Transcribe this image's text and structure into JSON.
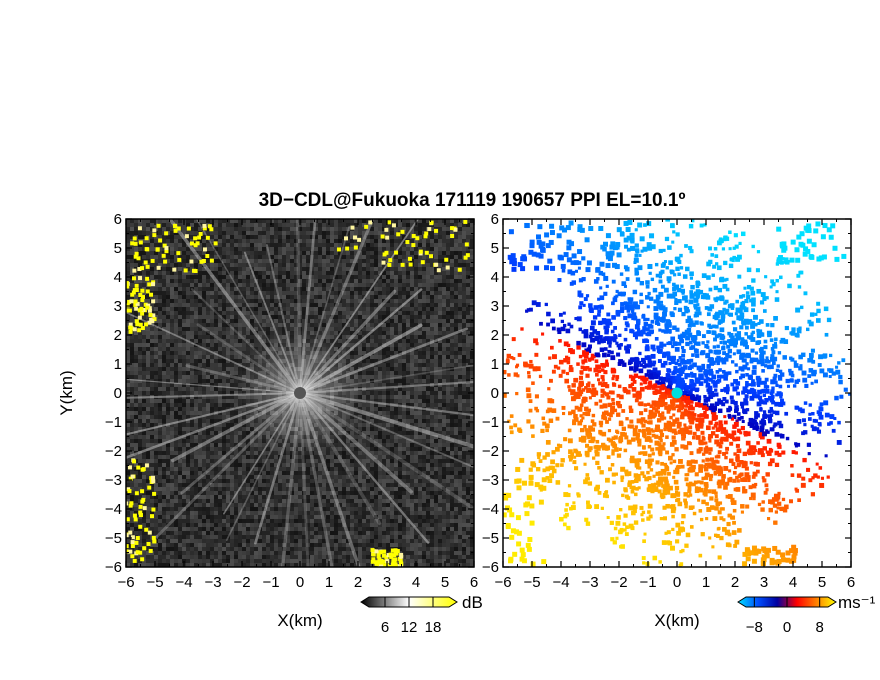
{
  "figure": {
    "title": "3D−CDL@Fukuoka 171119 190657 PPI EL=10.1º"
  },
  "chart_data": [
    {
      "type": "heatmap",
      "quantity": "reflectivity",
      "xlabel": "X(km)",
      "ylabel": "Y(km)",
      "xlim": [
        -6,
        6
      ],
      "ylim": [
        -6,
        6
      ],
      "xticks": [
        "−6",
        "−5",
        "−4",
        "−3",
        "−2",
        "−1",
        "0",
        "1",
        "2",
        "3",
        "4",
        "5",
        "6"
      ],
      "yticks": [
        "−6",
        "−5",
        "−4",
        "−3",
        "−2",
        "−1",
        "0",
        "1",
        "2",
        "3",
        "4",
        "5",
        "6"
      ],
      "colorbar": {
        "unit": "dB",
        "ticks": [
          "6",
          "12",
          "18"
        ],
        "range": [
          0,
          24
        ],
        "colors": [
          "#000000",
          "#ffffff",
          "#ffff00"
        ]
      },
      "features": {
        "radar_center": [
          0,
          0
        ],
        "radial_beams": 40,
        "high_echo_color": "#ffff00",
        "high_echo_regions": [
          {
            "x": [
              -5.8,
              -2.9
            ],
            "y": [
              4.2,
              5.8
            ]
          },
          {
            "x": [
              -6.0,
              -5.0
            ],
            "y": [
              2.0,
              4.0
            ]
          },
          {
            "x": [
              1.2,
              5.8
            ],
            "y": [
              4.2,
              5.9
            ]
          },
          {
            "x": [
              -6.0,
              -5.0
            ],
            "y": [
              -5.9,
              -2.3
            ]
          },
          {
            "x": [
              2.5,
              3.5
            ],
            "y": [
              -6.0,
              -5.4
            ]
          }
        ]
      }
    },
    {
      "type": "heatmap",
      "quantity": "radial velocity",
      "xlabel": "X(km)",
      "xlim": [
        -6,
        6
      ],
      "ylim": [
        -6,
        6
      ],
      "xticks": [
        "−6",
        "−5",
        "−4",
        "−3",
        "−2",
        "−1",
        "0",
        "1",
        "2",
        "3",
        "4",
        "5",
        "6"
      ],
      "yticks": [
        "−6",
        "−5",
        "−4",
        "−3",
        "−2",
        "−1",
        "0",
        "1",
        "2",
        "3",
        "4",
        "5",
        "6"
      ],
      "colorbar": {
        "unit": "ms⁻¹",
        "ticks": [
          "−8",
          "0",
          "8"
        ],
        "range": [
          -12,
          12
        ],
        "colors": [
          "#00e0ff",
          "#0050ff",
          "#0000a0",
          "#ff0000",
          "#ff8000",
          "#ffff00"
        ]
      },
      "features": {
        "radar_center": [
          0,
          0
        ],
        "center_marker_color": "#00e0e0",
        "approaching_sector_deg": [
          -30,
          160
        ],
        "receding_sector_deg": [
          160,
          330
        ],
        "max_range_km": 6
      }
    }
  ]
}
